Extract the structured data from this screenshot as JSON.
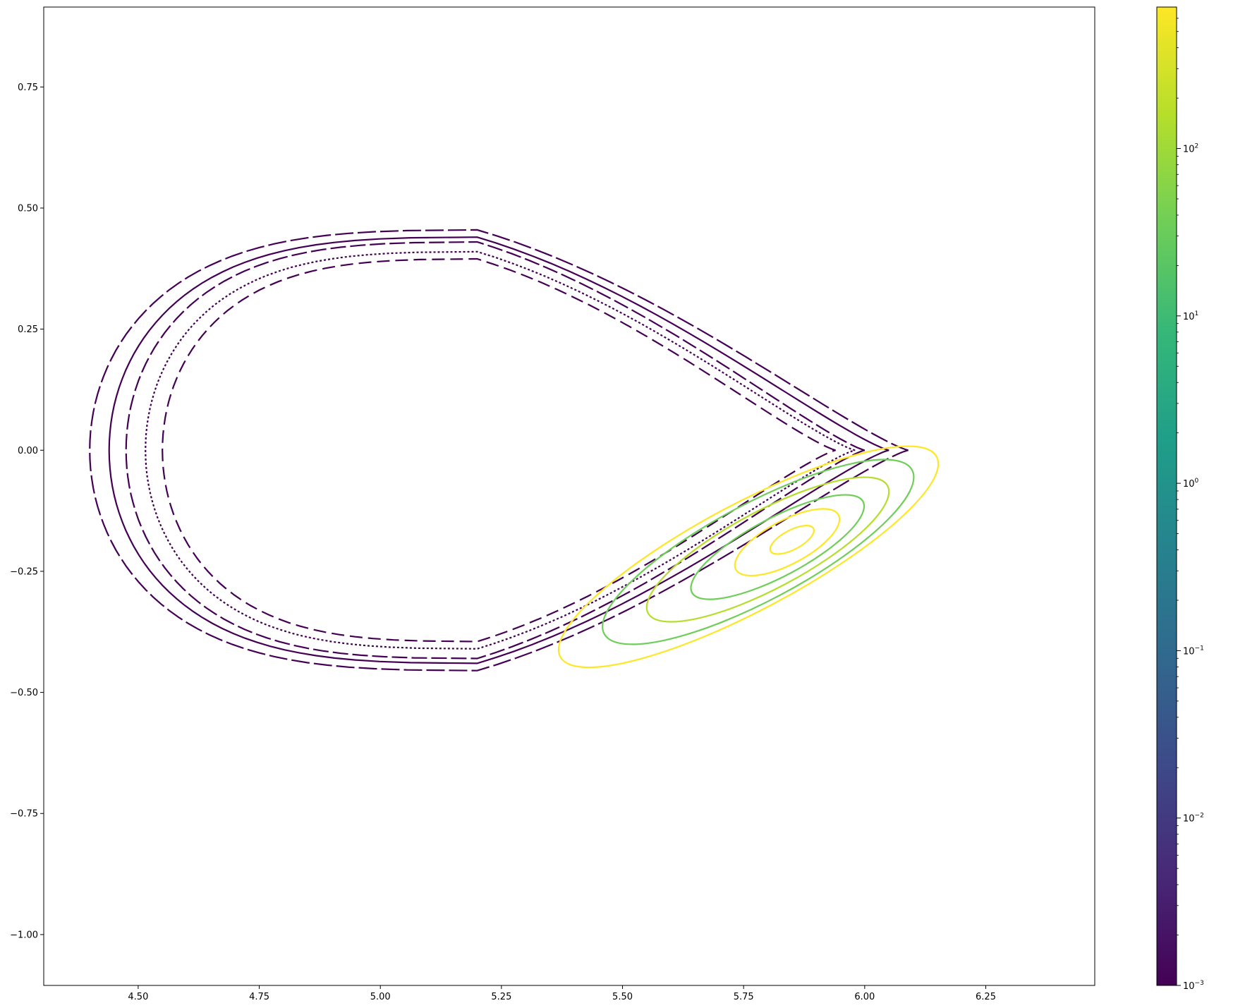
{
  "chart_data": {
    "type": "scatter",
    "title": "",
    "xlabel": "",
    "ylabel": "",
    "xlim": [
      4.305,
      6.475
    ],
    "ylim": [
      -1.105,
      0.915
    ],
    "x_ticks": [
      4.5,
      4.75,
      5.0,
      5.25,
      5.5,
      5.75,
      6.0,
      6.25
    ],
    "x_tick_labels": [
      "4.50",
      "4.75",
      "5.00",
      "5.25",
      "5.50",
      "5.75",
      "6.00",
      "6.25"
    ],
    "y_ticks": [
      0.75,
      0.5,
      0.25,
      0.0,
      -0.25,
      -0.5,
      -0.75,
      -1.0
    ],
    "y_tick_labels": [
      "0.75",
      "0.50",
      "0.25",
      "0.00",
      "−0.25",
      "−0.50",
      "−0.75",
      "−1.00"
    ],
    "grid": false,
    "colormap": "viridis",
    "colorbar": {
      "scale": "log",
      "range": [
        0.001,
        700
      ],
      "ticks": [
        {
          "value": 0.001,
          "base": "10",
          "exp": "−3"
        },
        {
          "value": 0.01,
          "base": "10",
          "exp": "−2"
        },
        {
          "value": 0.1,
          "base": "10",
          "exp": "−1"
        },
        {
          "value": 1,
          "base": "10",
          "exp": "0"
        },
        {
          "value": 10,
          "base": "10",
          "exp": "1"
        },
        {
          "value": 100,
          "base": "10",
          "exp": "2"
        }
      ]
    },
    "colors": [
      "#440154",
      "#482878",
      "#3e4989",
      "#31688e",
      "#26828e",
      "#1f9e89",
      "#35b779",
      "#6ece58",
      "#b5de2b",
      "#fde725"
    ],
    "series": [
      {
        "kind": "flux_surface",
        "center": [
          5.2,
          0
        ],
        "width": 1.3,
        "height": 0.79,
        "tip_x": 5.94,
        "value": 0.001,
        "dash": [
          18,
          8
        ]
      },
      {
        "kind": "flux_surface",
        "center": [
          5.2,
          0
        ],
        "width": 1.37,
        "height": 0.82,
        "tip_x": 5.98,
        "value": 0.001,
        "dash": [
          3,
          3
        ]
      },
      {
        "kind": "flux_surface",
        "center": [
          5.2,
          0
        ],
        "width": 1.45,
        "height": 0.86,
        "tip_x": 6.0,
        "value": 0.001,
        "dash": [
          22,
          6
        ]
      },
      {
        "kind": "flux_surface",
        "center": [
          5.2,
          0
        ],
        "width": 1.52,
        "height": 0.88,
        "tip_x": 6.05,
        "value": 0.001,
        "dash": []
      },
      {
        "kind": "flux_surface",
        "center": [
          5.2,
          0
        ],
        "width": 1.6,
        "height": 0.91,
        "tip_x": 6.09,
        "value": 0.001,
        "dash": [
          26,
          6
        ]
      },
      {
        "kind": "island",
        "center": [
          5.85,
          -0.185
        ],
        "rx": 0.05,
        "ry": 0.02,
        "angle": 28,
        "value": 700
      },
      {
        "kind": "island",
        "center": [
          5.84,
          -0.19
        ],
        "rx": 0.12,
        "ry": 0.045,
        "angle": 28,
        "value": 500
      },
      {
        "kind": "island",
        "center": [
          5.82,
          -0.2
        ],
        "rx": 0.2,
        "ry": 0.06,
        "angle": 28,
        "value": 40
      },
      {
        "kind": "island",
        "center": [
          5.8,
          -0.205
        ],
        "rx": 0.28,
        "ry": 0.08,
        "angle": 28,
        "value": 300
      },
      {
        "kind": "island",
        "center": [
          5.78,
          -0.21
        ],
        "rx": 0.36,
        "ry": 0.1,
        "angle": 28,
        "value": 30
      },
      {
        "kind": "island",
        "center": [
          5.76,
          -0.22
        ],
        "rx": 0.44,
        "ry": 0.11,
        "angle": 28,
        "value": 400
      }
    ]
  }
}
